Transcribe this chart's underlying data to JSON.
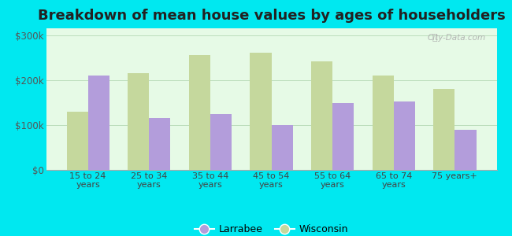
{
  "title": "Breakdown of mean house values by ages of householders",
  "categories": [
    "15 to 24\nyears",
    "25 to 34\nyears",
    "35 to 44\nyears",
    "45 to 54\nyears",
    "55 to 64\nyears",
    "65 to 74\nyears",
    "75 years+"
  ],
  "larrabee": [
    210000,
    115000,
    125000,
    100000,
    148000,
    153000,
    90000
  ],
  "wisconsin": [
    130000,
    215000,
    255000,
    260000,
    242000,
    210000,
    180000
  ],
  "larrabee_color": "#b39ddb",
  "wisconsin_color": "#c5d89d",
  "background_color": "#00e8f0",
  "plot_bg_color": "#e8fce8",
  "yticks": [
    0,
    100000,
    200000,
    300000
  ],
  "ylabels": [
    "$0",
    "$100k",
    "$200k",
    "$300k"
  ],
  "ylim": [
    0,
    315000
  ],
  "legend_larrabee": "Larrabee",
  "legend_wisconsin": "Wisconsin",
  "title_fontsize": 13,
  "bar_width": 0.35,
  "watermark": "City-Data.com"
}
